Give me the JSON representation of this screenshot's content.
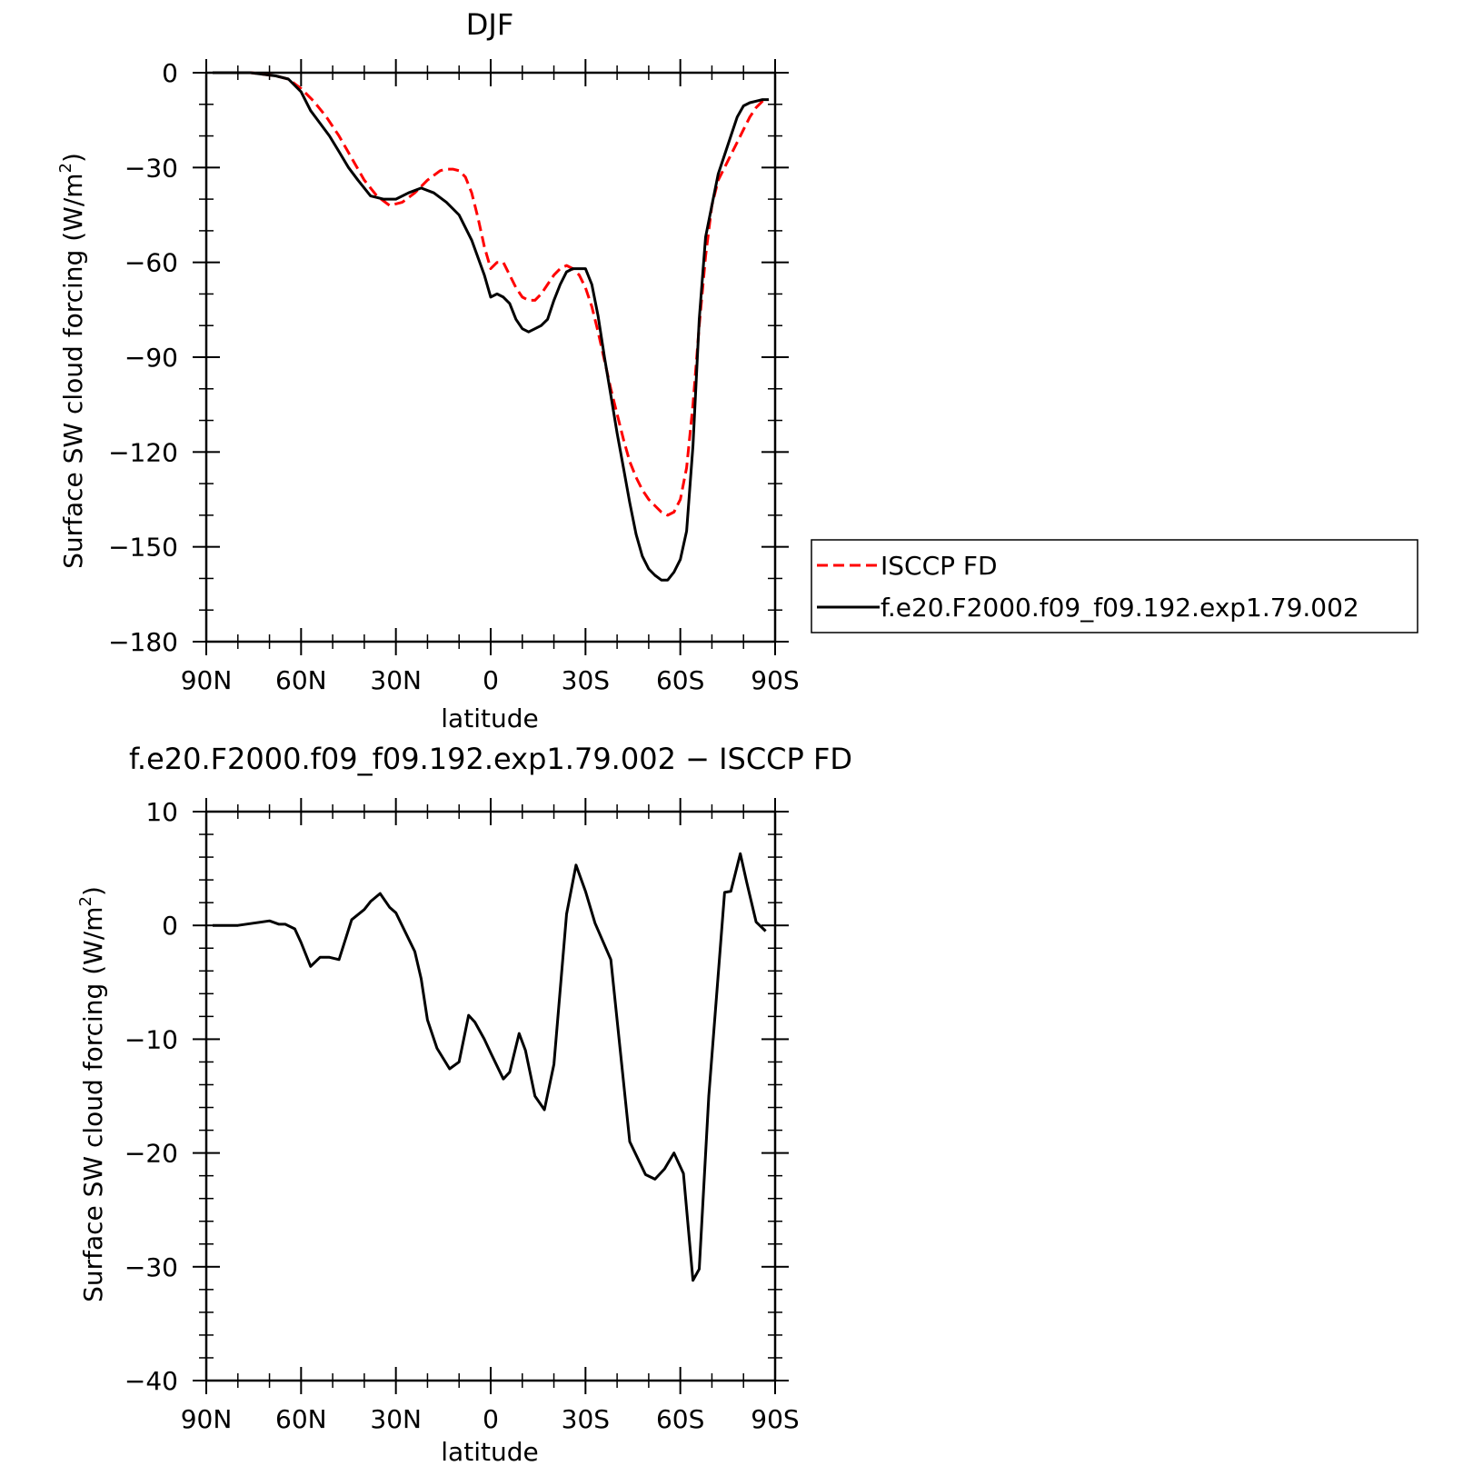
{
  "chart_data": [
    {
      "type": "line",
      "title": "DJF",
      "xlabel": "latitude",
      "ylabel": "Surface SW cloud forcing (W/m²)",
      "ylabel_parts": [
        "Surface SW cloud forcing (W/m",
        "2",
        ")"
      ],
      "xlim": [
        90,
        -90
      ],
      "ylim": [
        -180,
        0
      ],
      "x_tick_values": [
        90,
        60,
        30,
        0,
        -30,
        -60,
        -90
      ],
      "x_tick_labels": [
        "90N",
        "60N",
        "30N",
        "0",
        "30S",
        "60S",
        "90S"
      ],
      "y_tick_values": [
        0,
        -30,
        -60,
        -90,
        -120,
        -150,
        -180
      ],
      "y_tick_labels": [
        "0",
        "−30",
        "−60",
        "−90",
        "−120",
        "−150",
        "−180"
      ],
      "x_minor_step": 10,
      "y_minor_step": 10,
      "legend": "right",
      "series": [
        {
          "name": "ISCCP FD",
          "color": "#ff0000",
          "dash": "dashed",
          "x": [
            88,
            84,
            80,
            76,
            72,
            68,
            64,
            60,
            56,
            52,
            48,
            44,
            40,
            36,
            32,
            28,
            24,
            20,
            16,
            14,
            12,
            10,
            8,
            6,
            4,
            2,
            0,
            -2,
            -4,
            -6,
            -8,
            -10,
            -12,
            -14,
            -16,
            -18,
            -20,
            -22,
            -24,
            -26,
            -28,
            -30,
            -32,
            -34,
            -36,
            -38,
            -40,
            -42,
            -44,
            -46,
            -48,
            -50,
            -52,
            -54,
            -56,
            -58,
            -60,
            -62,
            -64,
            -66,
            -68,
            -70,
            -72,
            -74,
            -76,
            -78,
            -80,
            -82,
            -84,
            -86,
            -88
          ],
          "y": [
            0,
            0,
            0,
            0,
            -0.5,
            -1,
            -2,
            -5,
            -9,
            -14,
            -20,
            -27,
            -34,
            -39,
            -42,
            -41,
            -38,
            -34,
            -31,
            -30.5,
            -30.5,
            -31,
            -33,
            -38,
            -46,
            -55,
            -62,
            -60,
            -60,
            -64,
            -68,
            -71,
            -72,
            -72,
            -70,
            -67,
            -64,
            -62,
            -61,
            -62,
            -64,
            -68,
            -74,
            -82,
            -91,
            -100,
            -108,
            -116,
            -123,
            -128,
            -132,
            -135,
            -137,
            -139,
            -140,
            -139,
            -135,
            -125,
            -105,
            -80,
            -58,
            -42,
            -34,
            -30,
            -26,
            -22,
            -18,
            -14,
            -11,
            -9,
            -8.5
          ]
        },
        {
          "name": "f.e20.F2000.f09_f09.192.exp1.79.002",
          "color": "#000000",
          "dash": "solid",
          "x": [
            88,
            84,
            80,
            76,
            72,
            68,
            64,
            60,
            57,
            54,
            51,
            48,
            45,
            42,
            38,
            34,
            30,
            26,
            22,
            18,
            14,
            10,
            6,
            2,
            0,
            -2,
            -4,
            -6,
            -8,
            -10,
            -12,
            -14,
            -16,
            -18,
            -20,
            -22,
            -24,
            -26,
            -28,
            -30,
            -32,
            -34,
            -36,
            -38,
            -40,
            -42,
            -44,
            -46,
            -48,
            -50,
            -52,
            -54,
            -56,
            -58,
            -60,
            -62,
            -64,
            -66,
            -68,
            -70,
            -72,
            -74,
            -76,
            -78,
            -80,
            -82,
            -84,
            -86,
            -88
          ],
          "y": [
            0,
            0,
            0,
            0,
            -0.5,
            -1,
            -2,
            -6,
            -12,
            -16,
            -20,
            -25,
            -30,
            -34,
            -39,
            -40,
            -40,
            -38,
            -36.5,
            -38,
            -41,
            -45,
            -53,
            -64,
            -71,
            -70,
            -71,
            -73,
            -78,
            -81,
            -82,
            -81,
            -80,
            -78,
            -72,
            -67,
            -63,
            -62,
            -62,
            -62,
            -67,
            -77,
            -90,
            -102,
            -114,
            -125,
            -136,
            -146,
            -153,
            -157,
            -159,
            -160.5,
            -160.5,
            -158,
            -154,
            -145,
            -118,
            -78,
            -52,
            -42,
            -32,
            -26,
            -20,
            -14,
            -10.5,
            -9.5,
            -9,
            -8.5,
            -8.5
          ]
        }
      ]
    },
    {
      "type": "line",
      "title": "f.e20.F2000.f09_f09.192.exp1.79.002 − ISCCP FD",
      "xlabel": "latitude",
      "ylabel": "Surface SW cloud forcing (W/m²)",
      "ylabel_parts": [
        "Surface SW cloud forcing (W/m",
        "2",
        ")"
      ],
      "xlim": [
        90,
        -90
      ],
      "ylim": [
        -40,
        10
      ],
      "x_tick_values": [
        90,
        60,
        30,
        0,
        -30,
        -60,
        -90
      ],
      "x_tick_labels": [
        "90N",
        "60N",
        "30N",
        "0",
        "30S",
        "60S",
        "90S"
      ],
      "y_tick_values": [
        10,
        0,
        -10,
        -20,
        -30,
        -40
      ],
      "y_tick_labels": [
        "10",
        "0",
        "−10",
        "−20",
        "−30",
        "−40"
      ],
      "x_minor_step": 10,
      "y_minor_step": 2,
      "series": [
        {
          "color": "#000000",
          "dash": "solid",
          "x": [
            88,
            80,
            75,
            70,
            67,
            65,
            62,
            60,
            57,
            54,
            51,
            48,
            44,
            40,
            38,
            35,
            32,
            30,
            27,
            24,
            22,
            20,
            17,
            13,
            10,
            7,
            5,
            2,
            0,
            -4,
            -6,
            -9,
            -11,
            -14,
            -17,
            -20,
            -24,
            -27,
            -30,
            -33,
            -38,
            -44,
            -49,
            -52,
            -55,
            -58,
            -61,
            -64,
            -66,
            -69,
            -74,
            -76,
            -79,
            -81,
            -84,
            -87
          ],
          "y": [
            0,
            0,
            0.2,
            0.4,
            0.1,
            0.1,
            -0.3,
            -1.5,
            -3.6,
            -2.8,
            -2.8,
            -3.0,
            0.5,
            1.4,
            2.1,
            2.8,
            1.6,
            1.1,
            -0.6,
            -2.3,
            -4.7,
            -8.3,
            -10.8,
            -12.6,
            -12.0,
            -7.9,
            -8.5,
            -10.0,
            -11.2,
            -13.5,
            -12.9,
            -9.5,
            -11.0,
            -15.0,
            -16.2,
            -12.2,
            1.0,
            5.3,
            3.0,
            0.2,
            -3.0,
            -19.0,
            -21.9,
            -22.3,
            -21.4,
            -20.0,
            -21.8,
            -31.2,
            -30.2,
            -15.0,
            2.9,
            3.0,
            6.3,
            3.8,
            0.3,
            -0.5
          ]
        }
      ]
    }
  ]
}
